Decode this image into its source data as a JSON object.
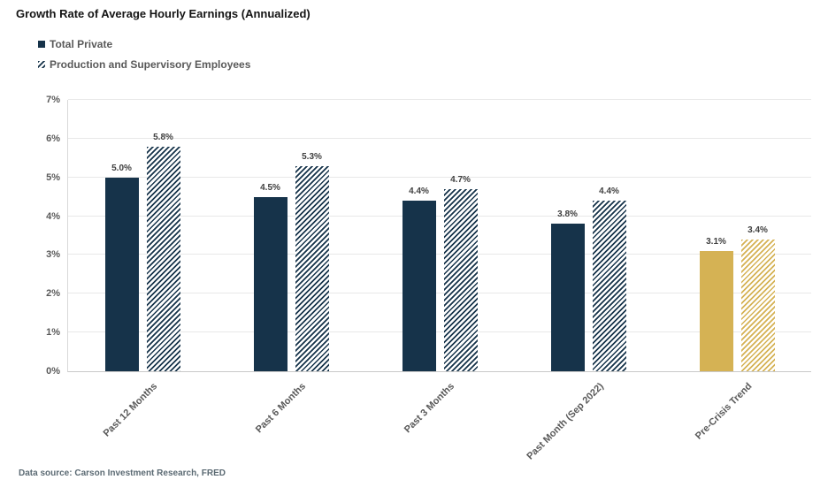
{
  "chart": {
    "title": "Growth Rate of Average Hourly Earnings (Annualized)"
  },
  "chart_data": {
    "type": "bar",
    "categories": [
      "Past 12 Months",
      "Past 6 Months",
      "Past 3 Months",
      "Past Month (Sep 2022)",
      "Pre-Crisis Trend"
    ],
    "series": [
      {
        "name": "Total Private",
        "style": "solid",
        "values": [
          5.0,
          4.5,
          4.4,
          3.8,
          3.1
        ],
        "labels": [
          "5.0%",
          "4.5%",
          "4.4%",
          "3.8%",
          "3.1%"
        ]
      },
      {
        "name": "Production and Supervisory Employees",
        "style": "hatch",
        "values": [
          5.8,
          5.3,
          4.7,
          4.4,
          3.4
        ],
        "labels": [
          "5.8%",
          "5.3%",
          "4.7%",
          "4.4%",
          "3.4%"
        ]
      }
    ],
    "ylim": [
      0,
      7
    ],
    "ytick_step": 1,
    "ytick_labels": [
      "0%",
      "1%",
      "2%",
      "3%",
      "4%",
      "5%",
      "6%",
      "7%"
    ],
    "grid": true,
    "legend_position": "top-left",
    "highlight_category": "Pre-Crisis Trend",
    "colors": {
      "primary": "#16334a",
      "highlight": "#d5b254",
      "hatch_background": "#ffffff",
      "gridline": "#e8e8e8",
      "axis_text": "#595959"
    }
  },
  "footer": {
    "source": "Data source: Carson Investment Research, FRED"
  }
}
